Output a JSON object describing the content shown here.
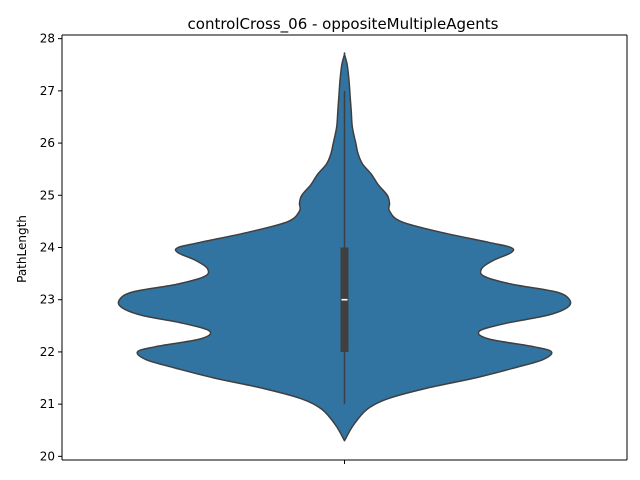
{
  "chart_data": {
    "type": "violin",
    "title": "controlCross_06 - oppositeMultipleAgents",
    "xlabel": "",
    "ylabel": "PathLength",
    "ylim": [
      19.93,
      28.07
    ],
    "yticks": [
      20,
      21,
      22,
      23,
      24,
      25,
      26,
      27,
      28
    ],
    "categories": [
      ""
    ],
    "grid": false,
    "colors": {
      "violin_fill": "#3274a1",
      "violin_edge": "#3f3f3f",
      "median": "#ffffff"
    },
    "series": [
      {
        "summary": {
          "min": 21,
          "q1": 22,
          "median": 23,
          "q3": 24,
          "max": 27
        },
        "density_profile": {
          "y": [
            20.3,
            20.6,
            20.9,
            21.1,
            21.3,
            21.5,
            21.7,
            21.85,
            22.0,
            22.1,
            22.25,
            22.4,
            22.55,
            22.7,
            22.85,
            23.0,
            23.15,
            23.3,
            23.45,
            23.6,
            23.75,
            23.9,
            24.0,
            24.1,
            24.3,
            24.5,
            24.7,
            24.85,
            25.0,
            25.2,
            25.4,
            25.6,
            25.8,
            26.0,
            26.3,
            26.6,
            26.9,
            27.2,
            27.5,
            27.7
          ],
          "width": [
            0.0,
            0.04,
            0.1,
            0.19,
            0.36,
            0.58,
            0.76,
            0.88,
            0.92,
            0.84,
            0.64,
            0.6,
            0.72,
            0.9,
            0.99,
            1.0,
            0.94,
            0.74,
            0.62,
            0.61,
            0.66,
            0.74,
            0.74,
            0.64,
            0.42,
            0.25,
            0.2,
            0.2,
            0.19,
            0.15,
            0.12,
            0.08,
            0.06,
            0.05,
            0.035,
            0.03,
            0.025,
            0.02,
            0.012,
            0.0
          ]
        }
      }
    ]
  }
}
